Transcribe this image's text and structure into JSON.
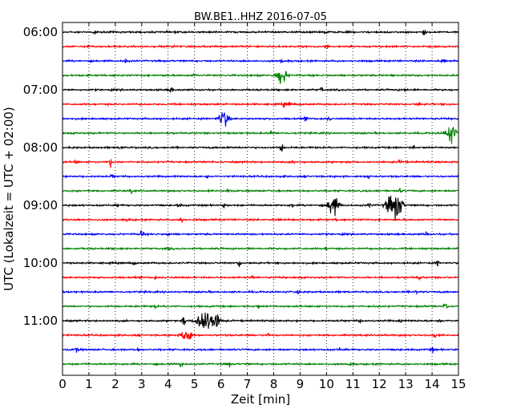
{
  "chart_data": {
    "type": "line",
    "title": "BW.BE1..HHZ 2016-07-05",
    "xlabel": "Zeit  [min]",
    "ylabel": "UTC (Lokalzeit = UTC + 02:00)",
    "xlim": [
      0,
      15
    ],
    "x_ticks": [
      "0",
      "1",
      "2",
      "3",
      "4",
      "5",
      "6",
      "7",
      "8",
      "9",
      "10",
      "11",
      "12",
      "13",
      "14",
      "15"
    ],
    "y_ticks": [
      "06:00",
      "07:00",
      "08:00",
      "09:00",
      "10:00",
      "11:00"
    ],
    "grid": true,
    "trace_colors": [
      "#000000",
      "#ff0000",
      "#0000ff",
      "#008000"
    ],
    "traces": [
      {
        "start": "06:00",
        "events": [
          [
            1.2,
            0.18
          ],
          [
            10.0,
            0.22
          ],
          [
            13.7,
            0.3
          ]
        ]
      },
      {
        "start": "06:15",
        "events": [
          [
            1.0,
            0.2
          ],
          [
            4.2,
            0.15
          ],
          [
            10.0,
            0.2
          ]
        ]
      },
      {
        "start": "06:30",
        "events": [
          [
            2.4,
            0.3
          ],
          [
            8.3,
            0.2
          ],
          [
            14.4,
            0.25
          ]
        ]
      },
      {
        "start": "06:45",
        "events": [
          [
            5.0,
            0.15
          ],
          [
            8.3,
            1.0
          ],
          [
            12.5,
            0.15
          ]
        ]
      },
      {
        "start": "07:00",
        "events": [
          [
            4.1,
            0.4
          ],
          [
            9.8,
            0.3
          ],
          [
            13.0,
            0.15
          ]
        ]
      },
      {
        "start": "07:15",
        "events": [
          [
            8.4,
            0.3
          ],
          [
            8.6,
            0.25
          ],
          [
            13.5,
            0.25
          ]
        ]
      },
      {
        "start": "07:30",
        "events": [
          [
            6.1,
            0.95
          ],
          [
            9.2,
            0.2
          ],
          [
            10.1,
            0.2
          ]
        ]
      },
      {
        "start": "07:45",
        "events": [
          [
            7.9,
            0.2
          ],
          [
            14.7,
            1.1
          ]
        ]
      },
      {
        "start": "08:00",
        "events": [
          [
            2.2,
            0.2
          ],
          [
            8.3,
            0.6
          ],
          [
            13.3,
            0.15
          ]
        ]
      },
      {
        "start": "08:15",
        "events": [
          [
            0.5,
            0.2
          ],
          [
            1.8,
            0.55
          ],
          [
            8.8,
            0.15
          ],
          [
            12.8,
            0.2
          ]
        ]
      },
      {
        "start": "08:30",
        "events": [
          [
            1.9,
            0.25
          ],
          [
            5.5,
            0.15
          ],
          [
            11.6,
            0.25
          ]
        ]
      },
      {
        "start": "08:45",
        "events": [
          [
            2.6,
            0.25
          ],
          [
            6.3,
            0.15
          ],
          [
            12.8,
            0.2
          ]
        ]
      },
      {
        "start": "09:00",
        "events": [
          [
            2.1,
            0.15
          ],
          [
            4.4,
            0.2
          ],
          [
            6.1,
            0.2
          ],
          [
            8.7,
            0.2
          ],
          [
            10.25,
            1.3
          ],
          [
            11.6,
            0.25
          ],
          [
            12.4,
            1.0
          ],
          [
            12.7,
            1.4
          ]
        ]
      },
      {
        "start": "09:15",
        "events": [
          [
            2.5,
            0.2
          ],
          [
            4.5,
            0.45
          ],
          [
            10.4,
            0.15
          ]
        ]
      },
      {
        "start": "09:30",
        "events": [
          [
            3.0,
            0.5
          ],
          [
            4.0,
            0.15
          ],
          [
            13.8,
            0.3
          ]
        ]
      },
      {
        "start": "09:45",
        "events": [
          [
            4.0,
            0.15
          ],
          [
            10.0,
            0.15
          ]
        ]
      },
      {
        "start": "10:00",
        "events": [
          [
            2.7,
            0.15
          ],
          [
            6.7,
            0.45
          ],
          [
            14.2,
            0.25
          ]
        ]
      },
      {
        "start": "10:15",
        "events": [
          [
            3.5,
            0.2
          ],
          [
            7.2,
            0.15
          ],
          [
            13.5,
            0.25
          ]
        ]
      },
      {
        "start": "10:30",
        "events": [
          [
            8.9,
            0.5
          ],
          [
            13.4,
            0.3
          ]
        ]
      },
      {
        "start": "10:45",
        "events": [
          [
            3.5,
            0.25
          ],
          [
            7.4,
            0.25
          ],
          [
            14.5,
            0.5
          ]
        ]
      },
      {
        "start": "11:00",
        "events": [
          [
            4.6,
            0.5
          ],
          [
            5.2,
            0.9
          ],
          [
            5.45,
            1.1
          ],
          [
            5.8,
            0.9
          ],
          [
            11.3,
            0.2
          ],
          [
            12.8,
            0.25
          ],
          [
            14.3,
            0.25
          ]
        ]
      },
      {
        "start": "11:15",
        "events": [
          [
            4.7,
            0.95
          ],
          [
            7.8,
            0.2
          ],
          [
            14.1,
            0.3
          ]
        ]
      },
      {
        "start": "11:30",
        "events": [
          [
            0.55,
            0.35
          ],
          [
            2.9,
            0.2
          ],
          [
            10.5,
            0.2
          ],
          [
            14.0,
            0.35
          ]
        ]
      },
      {
        "start": "11:45",
        "events": [
          [
            4.5,
            0.45
          ],
          [
            6.3,
            0.3
          ],
          [
            10.9,
            0.15
          ]
        ]
      }
    ]
  }
}
